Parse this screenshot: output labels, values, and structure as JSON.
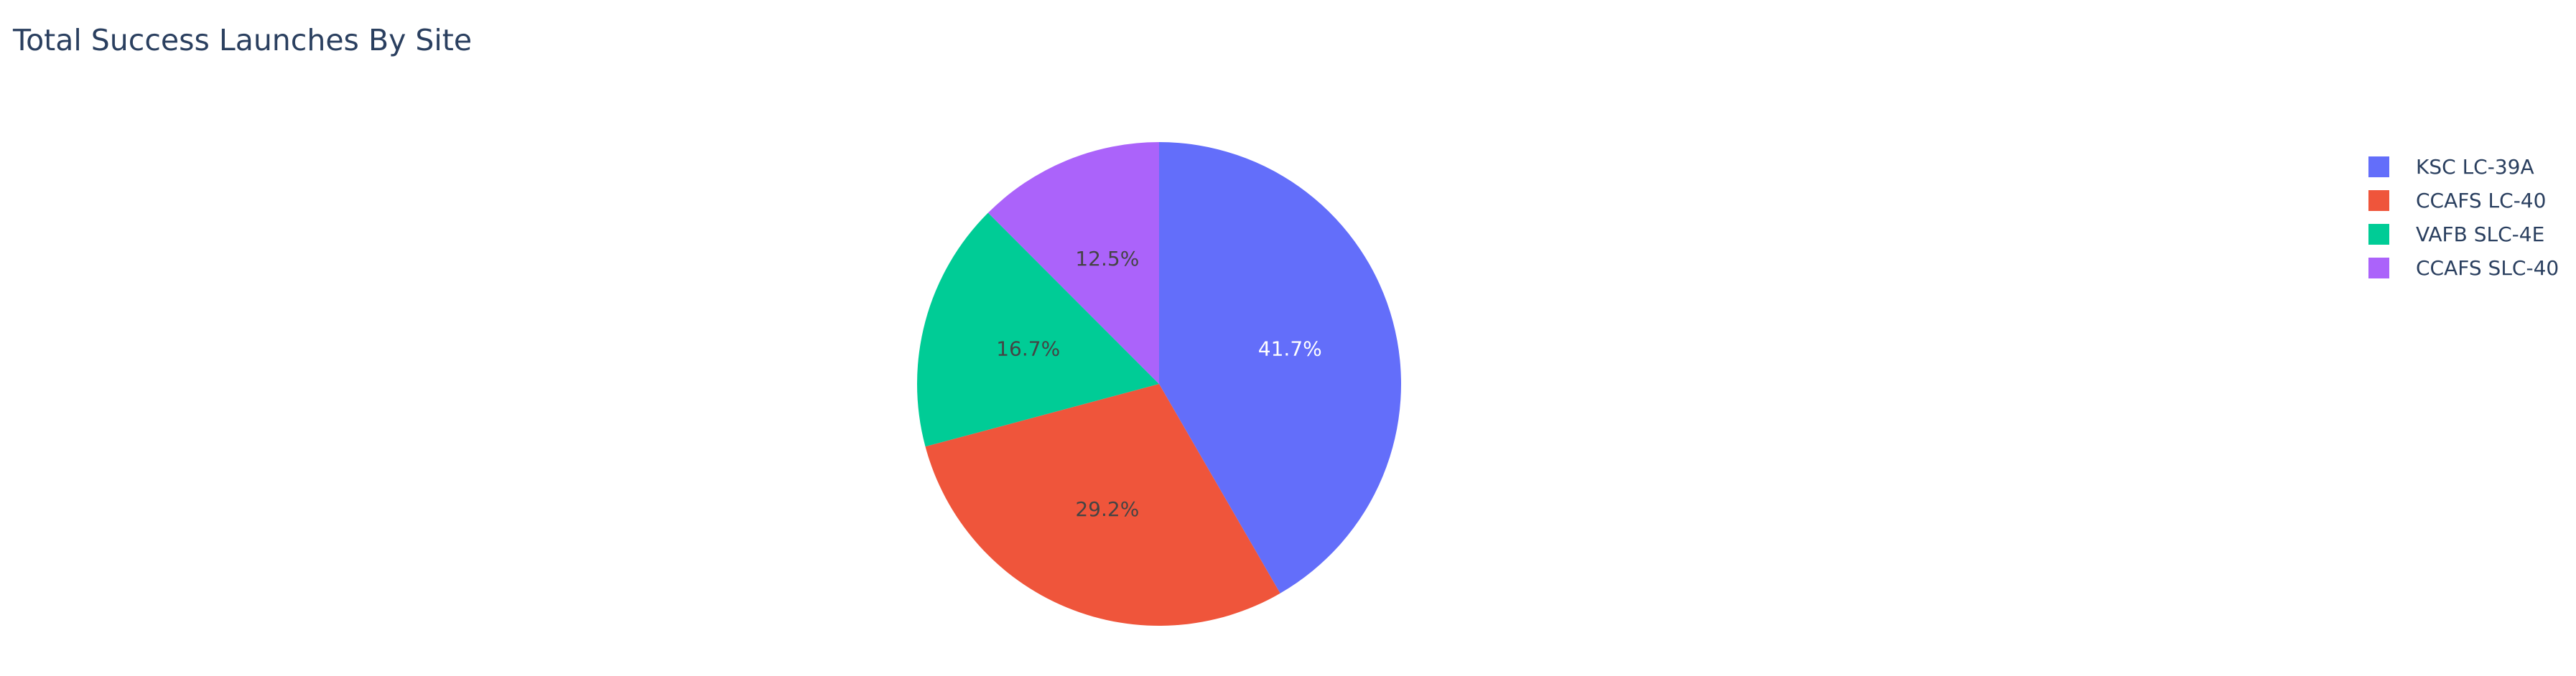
{
  "chart_data": {
    "type": "pie",
    "title": "Total Success Launches By Site",
    "labels": [
      "KSC LC-39A",
      "CCAFS LC-40",
      "VAFB SLC-4E",
      "CCAFS SLC-40"
    ],
    "values": [
      41.7,
      29.2,
      16.7,
      12.5
    ],
    "percent_labels": [
      "41.7%",
      "29.2%",
      "16.7%",
      "12.5%"
    ],
    "colors": [
      "#636efa",
      "#EF553B",
      "#00cc96",
      "#ab63fa"
    ],
    "label_colors": [
      "#ffffff",
      "#444444",
      "#444444",
      "#444444"
    ],
    "direction": "clockwise",
    "legend_position": "top-right"
  }
}
